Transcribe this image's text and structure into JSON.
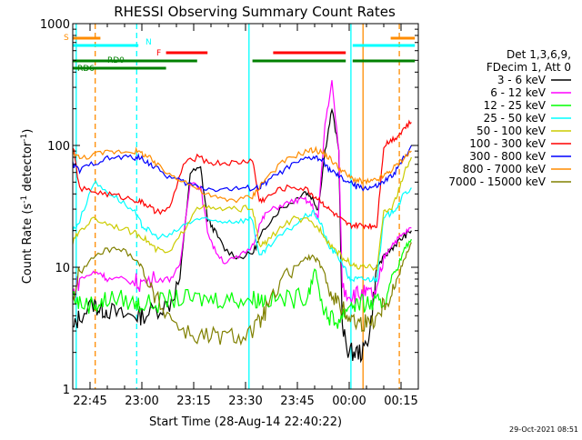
{
  "colors": {
    "background": "#ffffff",
    "foreground": "#000000",
    "s_marker": "#ff8c00",
    "n_marker": "#00ffff",
    "f_marker": "#ff0000",
    "rd_marker": "#008000"
  },
  "chart_data": {
    "type": "line",
    "title": "RHESSI Observing Summary Count Rates",
    "xlabel": "Start Time (28-Aug-14 22:40:22)",
    "ylabel_parts": [
      "Count Rate (s",
      "-1",
      " detector",
      "-1",
      ")"
    ],
    "yscale": "log",
    "ylim": [
      1,
      1000
    ],
    "xlim_minutes": [
      0,
      100
    ],
    "x_ticks": [
      {
        "label": "22:45",
        "minute": 5
      },
      {
        "label": "23:00",
        "minute": 20
      },
      {
        "label": "23:15",
        "minute": 35
      },
      {
        "label": "23:30",
        "minute": 50
      },
      {
        "label": "23:45",
        "minute": 65
      },
      {
        "label": "00:00",
        "minute": 80
      },
      {
        "label": "00:15",
        "minute": 95
      }
    ],
    "y_ticks": [
      {
        "label": "1",
        "value": 1
      },
      {
        "label": "10",
        "value": 10
      },
      {
        "label": "100",
        "value": 100
      },
      {
        "label": "1000",
        "value": 1000
      }
    ],
    "legend": {
      "placement": "right",
      "header": [
        "Det 1,3,6,9,",
        "FDecim 1, Att 0"
      ]
    },
    "timestamp": "29-Oct-2021 08:51",
    "series": [
      {
        "name": "3 - 6 keV",
        "color": "#000000",
        "x": [
          0,
          2,
          6,
          8,
          10,
          14,
          18,
          20,
          24,
          28,
          31,
          34,
          37,
          39,
          41,
          44,
          48,
          52,
          54,
          56,
          60,
          64,
          67,
          69,
          71,
          73,
          75,
          77,
          78,
          80,
          82,
          84,
          86,
          88,
          90,
          92,
          94,
          96,
          98
        ],
        "y": [
          3,
          4,
          5,
          4.5,
          4.5,
          4,
          4,
          4,
          4.5,
          5,
          8,
          60,
          65,
          25,
          20,
          14,
          12,
          13,
          17,
          22,
          30,
          35,
          42,
          38,
          30,
          90,
          200,
          90,
          3,
          2,
          2,
          2,
          3,
          10,
          12,
          14,
          16,
          18,
          20
        ]
      },
      {
        "name": "6 - 12 keV",
        "color": "#ff00ff",
        "x": [
          0,
          2,
          6,
          8,
          10,
          14,
          18,
          20,
          24,
          28,
          31,
          34,
          37,
          39,
          41,
          44,
          48,
          52,
          54,
          56,
          60,
          64,
          67,
          69,
          71,
          73,
          75,
          77,
          78,
          80,
          82,
          84,
          86,
          88,
          90,
          92,
          94,
          96,
          98
        ],
        "y": [
          6,
          8,
          9,
          9,
          8,
          8,
          7.5,
          7.5,
          8,
          8,
          10,
          52,
          45,
          20,
          14,
          11,
          12,
          15,
          22,
          28,
          32,
          35,
          36,
          33,
          25,
          150,
          330,
          90,
          7,
          6,
          6,
          6,
          6,
          6,
          12,
          15,
          17,
          19,
          21
        ]
      },
      {
        "name": "12 - 25 keV",
        "color": "#00ff00",
        "x": [
          0,
          2,
          6,
          8,
          10,
          14,
          18,
          20,
          24,
          28,
          32,
          36,
          40,
          44,
          48,
          52,
          54,
          56,
          60,
          64,
          68,
          70,
          72,
          74,
          76,
          78,
          80,
          82,
          84,
          86,
          88,
          90,
          92,
          94,
          96,
          98
        ],
        "y": [
          6,
          5,
          5,
          5,
          5.5,
          5.5,
          5,
          5,
          5,
          5.5,
          5.5,
          5.5,
          5.5,
          5.5,
          5.5,
          5.5,
          5.5,
          5.5,
          5.5,
          5.5,
          6,
          10,
          5,
          4,
          3.5,
          4,
          5,
          5,
          5,
          5,
          5,
          5,
          8,
          10,
          14,
          17
        ]
      },
      {
        "name": "25 - 50 keV",
        "color": "#00ffff",
        "x": [
          0,
          2,
          6,
          10,
          14,
          18,
          20,
          22,
          24,
          28,
          32,
          36,
          40,
          44,
          48,
          52,
          54,
          56,
          60,
          64,
          68,
          70,
          72,
          74,
          76,
          78,
          80,
          82,
          84,
          86,
          88,
          90,
          92,
          94,
          96,
          98
        ],
        "y": [
          20,
          24,
          50,
          42,
          35,
          28,
          22,
          20,
          18,
          18,
          22,
          25,
          24,
          24,
          24,
          25,
          12,
          14,
          18,
          22,
          27,
          28,
          22,
          15,
          13,
          11,
          8,
          8,
          8,
          8,
          8,
          25,
          28,
          32,
          40,
          45
        ]
      },
      {
        "name": "50 - 100 keV",
        "color": "#cccc00",
        "x": [
          0,
          2,
          6,
          10,
          14,
          18,
          20,
          22,
          24,
          28,
          32,
          36,
          40,
          44,
          48,
          52,
          54,
          56,
          60,
          64,
          68,
          70,
          72,
          74,
          76,
          78,
          80,
          82,
          84,
          86,
          88,
          90,
          92,
          94,
          96,
          98
        ],
        "y": [
          16,
          20,
          25,
          23,
          21,
          19,
          18,
          16,
          14,
          13,
          20,
          32,
          30,
          30,
          30,
          31,
          15,
          16,
          21,
          25,
          24,
          22,
          20,
          16,
          14,
          12,
          11,
          10,
          10,
          10,
          10,
          28,
          30,
          40,
          60,
          80
        ]
      },
      {
        "name": "100 - 300 keV",
        "color": "#ff0000",
        "x": [
          0,
          2,
          6,
          10,
          14,
          18,
          20,
          22,
          24,
          28,
          32,
          36,
          40,
          44,
          48,
          52,
          54,
          56,
          60,
          64,
          68,
          70,
          72,
          74,
          76,
          78,
          80,
          82,
          84,
          86,
          88,
          90,
          92,
          94,
          96,
          98
        ],
        "y": [
          100,
          44,
          42,
          40,
          38,
          36,
          34,
          32,
          28,
          30,
          70,
          80,
          72,
          72,
          72,
          77,
          35,
          37,
          44,
          46,
          43,
          38,
          35,
          30,
          27,
          24,
          22,
          22,
          22,
          22,
          22,
          100,
          110,
          120,
          140,
          155
        ]
      },
      {
        "name": "300 - 800 keV",
        "color": "#0000ff",
        "x": [
          0,
          2,
          6,
          10,
          14,
          18,
          20,
          22,
          24,
          28,
          32,
          36,
          40,
          44,
          48,
          52,
          54,
          56,
          60,
          64,
          68,
          70,
          72,
          74,
          76,
          78,
          80,
          82,
          84,
          86,
          88,
          90,
          92,
          94,
          96,
          98
        ],
        "y": [
          70,
          62,
          72,
          78,
          80,
          80,
          78,
          72,
          65,
          55,
          50,
          46,
          44,
          44,
          44,
          45,
          45,
          50,
          60,
          70,
          78,
          80,
          76,
          65,
          58,
          53,
          50,
          46,
          45,
          45,
          46,
          50,
          55,
          65,
          80,
          100
        ]
      },
      {
        "name": "800 - 7000 keV",
        "color": "#ff8c00",
        "x": [
          0,
          2,
          6,
          10,
          14,
          18,
          20,
          22,
          24,
          28,
          32,
          36,
          40,
          44,
          48,
          52,
          54,
          56,
          60,
          64,
          68,
          70,
          72,
          74,
          76,
          78,
          80,
          82,
          84,
          86,
          88,
          90,
          92,
          94,
          96,
          98
        ],
        "y": [
          90,
          78,
          84,
          88,
          90,
          90,
          86,
          80,
          70,
          58,
          52,
          44,
          38,
          36,
          36,
          38,
          46,
          54,
          70,
          82,
          90,
          92,
          88,
          80,
          70,
          62,
          55,
          52,
          50,
          50,
          52,
          56,
          62,
          70,
          80,
          90
        ]
      },
      {
        "name": "7000 - 15000 keV",
        "color": "#808000",
        "x": [
          0,
          2,
          6,
          10,
          14,
          18,
          20,
          22,
          24,
          28,
          32,
          36,
          40,
          44,
          48,
          52,
          54,
          56,
          60,
          64,
          68,
          70,
          72,
          74,
          76,
          78,
          80,
          82,
          84,
          86,
          88,
          90,
          92,
          94,
          96,
          98
        ],
        "y": [
          5.5,
          9,
          12,
          14,
          14,
          12,
          10,
          7,
          5.5,
          4,
          3,
          2.7,
          2.7,
          2.7,
          2.7,
          3,
          3.5,
          4.5,
          7,
          10,
          12,
          12,
          10,
          7,
          5.5,
          4.5,
          4,
          3.5,
          3.5,
          3.5,
          4,
          5,
          6,
          8,
          12,
          16
        ]
      }
    ],
    "flags": [
      {
        "label": "S",
        "color": "#ff8c00",
        "segments": [
          [
            0,
            8
          ],
          [
            92,
            99
          ]
        ]
      },
      {
        "label": "N",
        "color": "#00ffff",
        "segments": [
          [
            0,
            19
          ],
          [
            81,
            99
          ]
        ]
      },
      {
        "label": "F",
        "color": "#ff0000",
        "segments": [
          [
            27,
            39
          ],
          [
            58,
            79
          ]
        ]
      },
      {
        "label": "RD0",
        "color": "#008000",
        "segments": [
          [
            0,
            36
          ],
          [
            52,
            79
          ],
          [
            81,
            99
          ]
        ]
      },
      {
        "label": "RD6",
        "color": "#008000",
        "segments": [
          [
            0,
            27
          ]
        ]
      }
    ],
    "vlines": [
      {
        "minute": 1,
        "color": "#00ffff",
        "style": "solid"
      },
      {
        "minute": 6.5,
        "color": "#ff8c00",
        "style": "dashed"
      },
      {
        "minute": 18.5,
        "color": "#00ffff",
        "style": "dashed"
      },
      {
        "minute": 51,
        "color": "#00ffff",
        "style": "solid"
      },
      {
        "minute": 80.5,
        "color": "#00ffff",
        "style": "solid"
      },
      {
        "minute": 84,
        "color": "#ff8c00",
        "style": "solid"
      },
      {
        "minute": 94.5,
        "color": "#ff8c00",
        "style": "dashed"
      }
    ]
  }
}
